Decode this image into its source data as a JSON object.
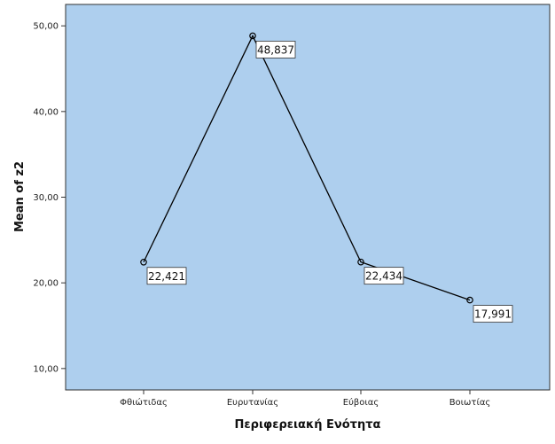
{
  "chart_data": {
    "type": "line",
    "title": "",
    "xlabel": "Περιφερειακή Ενότητα",
    "ylabel": "Mean of z2",
    "categories": [
      "Φθιώτιδας",
      "Ευρυτανίας",
      "Εύβοιας",
      "Βοιωτίας"
    ],
    "series": [
      {
        "values": [
          22.421,
          48.837,
          22.434,
          17.991
        ],
        "labels": [
          "22,421",
          "48,837",
          "22,434",
          "17,991"
        ]
      }
    ],
    "ylim": [
      7.5,
      52.5
    ],
    "yticks": [
      10,
      20,
      30,
      40,
      50
    ],
    "ytick_labels": [
      "10,00",
      "20,00",
      "30,00",
      "40,00",
      "50,00"
    ],
    "grid": false,
    "legend": "none",
    "colors": {
      "plot_background": "#aecfee",
      "line": "#000000",
      "axis": "#333333"
    }
  }
}
